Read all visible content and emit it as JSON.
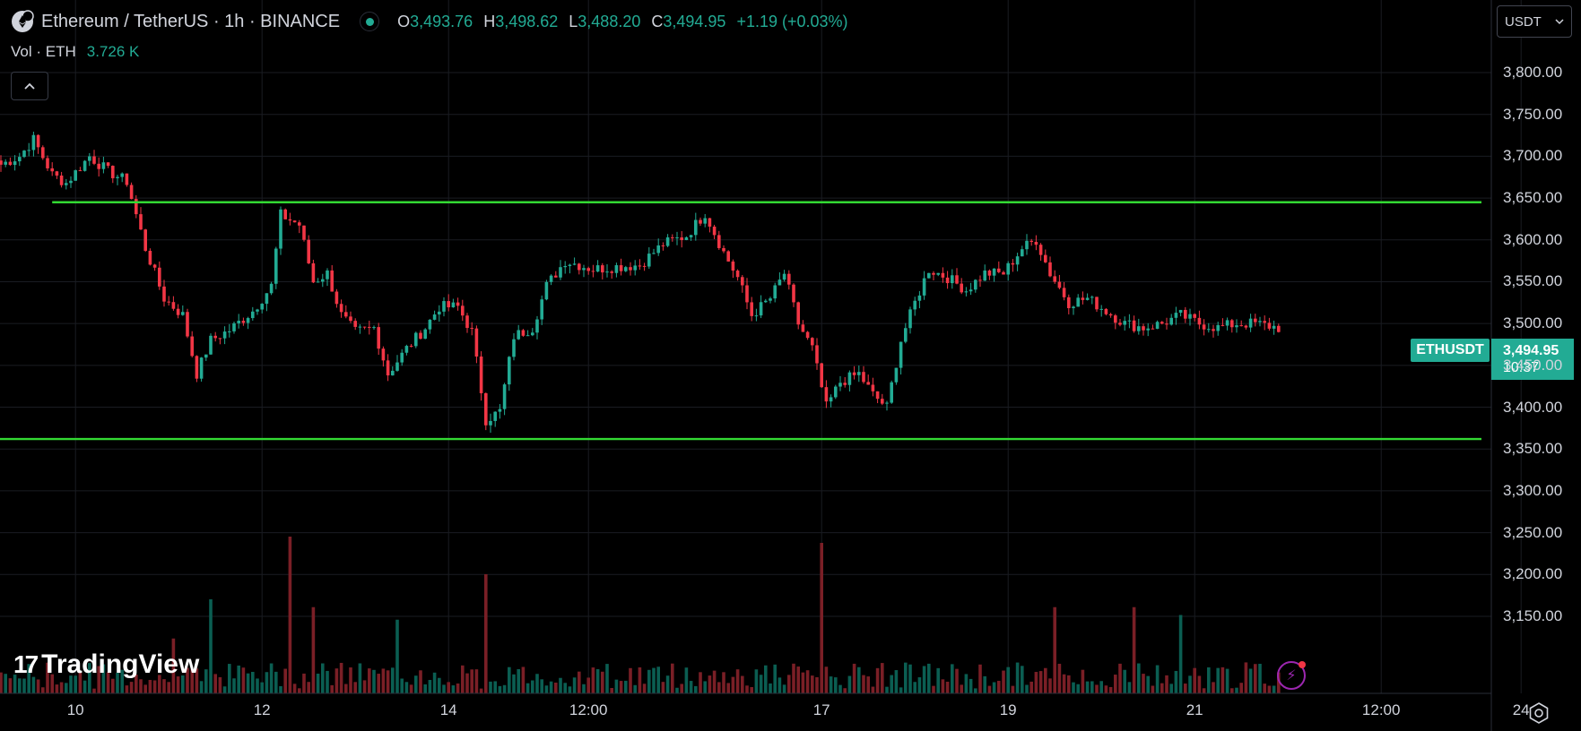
{
  "header": {
    "symbol": "Ethereum / TetherUS · 1h · BINANCE",
    "o_label": "O",
    "o_value": "3,493.76",
    "h_label": "H",
    "h_value": "3,498.62",
    "l_label": "L",
    "l_value": "3,488.20",
    "c_label": "C",
    "c_value": "3,494.95",
    "change": "+1.19 (+0.03%)",
    "vol_label": "Vol · ETH",
    "vol_value": "3.726 K"
  },
  "currency_select": {
    "value": "USDT"
  },
  "price_tag": {
    "symbol": "ETHUSDT",
    "price": "3,494.95",
    "countdown": "10:37"
  },
  "logo": {
    "text": "TradingView"
  },
  "colors": {
    "up": "#22ab94",
    "down": "#f23645",
    "up_volume": "#0b5e52",
    "down_volume": "#7a1f26",
    "level_line": "#33d933",
    "grid": "#1a1c22",
    "background": "#000000"
  },
  "chart_data": {
    "type": "candlestick",
    "interval": "1h",
    "ylim": [
      3100,
      3850
    ],
    "y_ticks": [
      3800,
      3750,
      3700,
      3650,
      3600,
      3550,
      3500,
      3450,
      3400,
      3350,
      3300,
      3250,
      3200,
      3150
    ],
    "y_tick_labels": [
      "3,800.00",
      "3,750.00",
      "3,700.00",
      "3,650.00",
      "3,600.00",
      "3,550.00",
      "3,500.00",
      "3,450.00",
      "3,400.00",
      "3,350.00",
      "3,300.00",
      "3,250.00",
      "3,200.00",
      "3,150.00"
    ],
    "x_tick_labels": [
      "10",
      "12",
      "14",
      "12:00",
      "17",
      "19",
      "21",
      "12:00",
      "24"
    ],
    "x_tick_index": [
      16,
      56,
      96,
      126,
      176,
      216,
      256,
      296,
      326
    ],
    "last_index": 274,
    "grid": true,
    "horizontal_levels": [
      {
        "price": 3645,
        "from_index": 11
      },
      {
        "price": 3362,
        "from_index": -4
      }
    ],
    "anchors": [
      [
        0,
        3690
      ],
      [
        4,
        3700
      ],
      [
        7,
        3720
      ],
      [
        11,
        3678
      ],
      [
        14,
        3668
      ],
      [
        19,
        3700
      ],
      [
        23,
        3682
      ],
      [
        27,
        3670
      ],
      [
        31,
        3590
      ],
      [
        35,
        3530
      ],
      [
        39,
        3510
      ],
      [
        42,
        3440
      ],
      [
        45,
        3480
      ],
      [
        49,
        3492
      ],
      [
        54,
        3515
      ],
      [
        58,
        3545
      ],
      [
        60,
        3630
      ],
      [
        64,
        3618
      ],
      [
        67,
        3550
      ],
      [
        70,
        3560
      ],
      [
        73,
        3510
      ],
      [
        76,
        3490
      ],
      [
        80,
        3495
      ],
      [
        83,
        3440
      ],
      [
        87,
        3470
      ],
      [
        91,
        3495
      ],
      [
        94,
        3520
      ],
      [
        98,
        3520
      ],
      [
        101,
        3490
      ],
      [
        104,
        3385
      ],
      [
        107,
        3395
      ],
      [
        110,
        3485
      ],
      [
        114,
        3495
      ],
      [
        117,
        3545
      ],
      [
        121,
        3575
      ],
      [
        127,
        3565
      ],
      [
        132,
        3568
      ],
      [
        137,
        3570
      ],
      [
        142,
        3595
      ],
      [
        147,
        3605
      ],
      [
        151,
        3632
      ],
      [
        155,
        3585
      ],
      [
        158,
        3555
      ],
      [
        161,
        3510
      ],
      [
        165,
        3530
      ],
      [
        168,
        3560
      ],
      [
        171,
        3500
      ],
      [
        174,
        3470
      ],
      [
        177,
        3400
      ],
      [
        180,
        3430
      ],
      [
        184,
        3440
      ],
      [
        187,
        3415
      ],
      [
        190,
        3400
      ],
      [
        193,
        3480
      ],
      [
        196,
        3525
      ],
      [
        199,
        3565
      ],
      [
        203,
        3555
      ],
      [
        207,
        3540
      ],
      [
        211,
        3560
      ],
      [
        215,
        3560
      ],
      [
        219,
        3590
      ],
      [
        222,
        3600
      ],
      [
        225,
        3560
      ],
      [
        229,
        3525
      ],
      [
        233,
        3530
      ],
      [
        237,
        3515
      ],
      [
        241,
        3500
      ],
      [
        245,
        3495
      ],
      [
        249,
        3500
      ],
      [
        253,
        3510
      ],
      [
        257,
        3500
      ],
      [
        261,
        3495
      ],
      [
        265,
        3500
      ],
      [
        269,
        3500
      ],
      [
        274,
        3495
      ]
    ],
    "volume_spikes": [
      {
        "index": 37,
        "size": 0.35
      },
      {
        "index": 45,
        "size": 0.6
      },
      {
        "index": 62,
        "size": 1.0
      },
      {
        "index": 67,
        "size": 0.55
      },
      {
        "index": 85,
        "size": 0.47
      },
      {
        "index": 104,
        "size": 0.76
      },
      {
        "index": 176,
        "size": 0.96
      },
      {
        "index": 226,
        "size": 0.55
      },
      {
        "index": 243,
        "size": 0.55
      },
      {
        "index": 253,
        "size": 0.5
      }
    ]
  }
}
